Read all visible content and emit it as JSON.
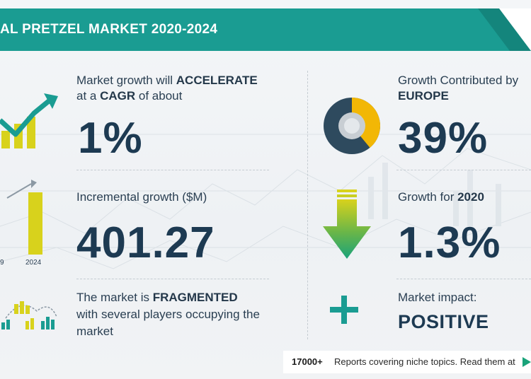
{
  "header": {
    "title": "AL PRETZEL MARKET 2020-2024"
  },
  "colors": {
    "teal": "#1a9c92",
    "navy": "#1d3a52",
    "yellow": "#d8d21c",
    "gold": "#f2b705",
    "green": "#1aa37a"
  },
  "left_column": {
    "cagr": {
      "line1_prefix": "Market growth will ",
      "line1_bold": "ACCELERATE",
      "line2_prefix": "at a ",
      "line2_bold": "CAGR",
      "line2_suffix": " of about",
      "value": "1%",
      "icon": "growth-chart-icon"
    },
    "incremental": {
      "label": "Incremental growth ($M)",
      "value": "401.27",
      "icon": "bar-comparison-icon",
      "tick_left": "9",
      "tick_right": "2024"
    },
    "fragmented": {
      "line1_prefix": "The market is ",
      "line1_bold": "FRAGMENTED",
      "line2": "with several players occupying the",
      "line3": "market",
      "icon": "market-players-icon"
    }
  },
  "right_column": {
    "region": {
      "label": "Growth Contributed by",
      "region": "EUROPE",
      "value": "39%",
      "icon": "donut-chart-icon",
      "share": 39
    },
    "yoy": {
      "label_prefix": "Growth for ",
      "label_bold": "2020",
      "value": "1.3%",
      "icon": "down-arrow-icon"
    },
    "impact": {
      "label": "Market impact:",
      "value": "POSITIVE",
      "icon": "plus-icon"
    }
  },
  "footer": {
    "count": "17000+",
    "text": "Reports covering niche topics. Read them at"
  }
}
